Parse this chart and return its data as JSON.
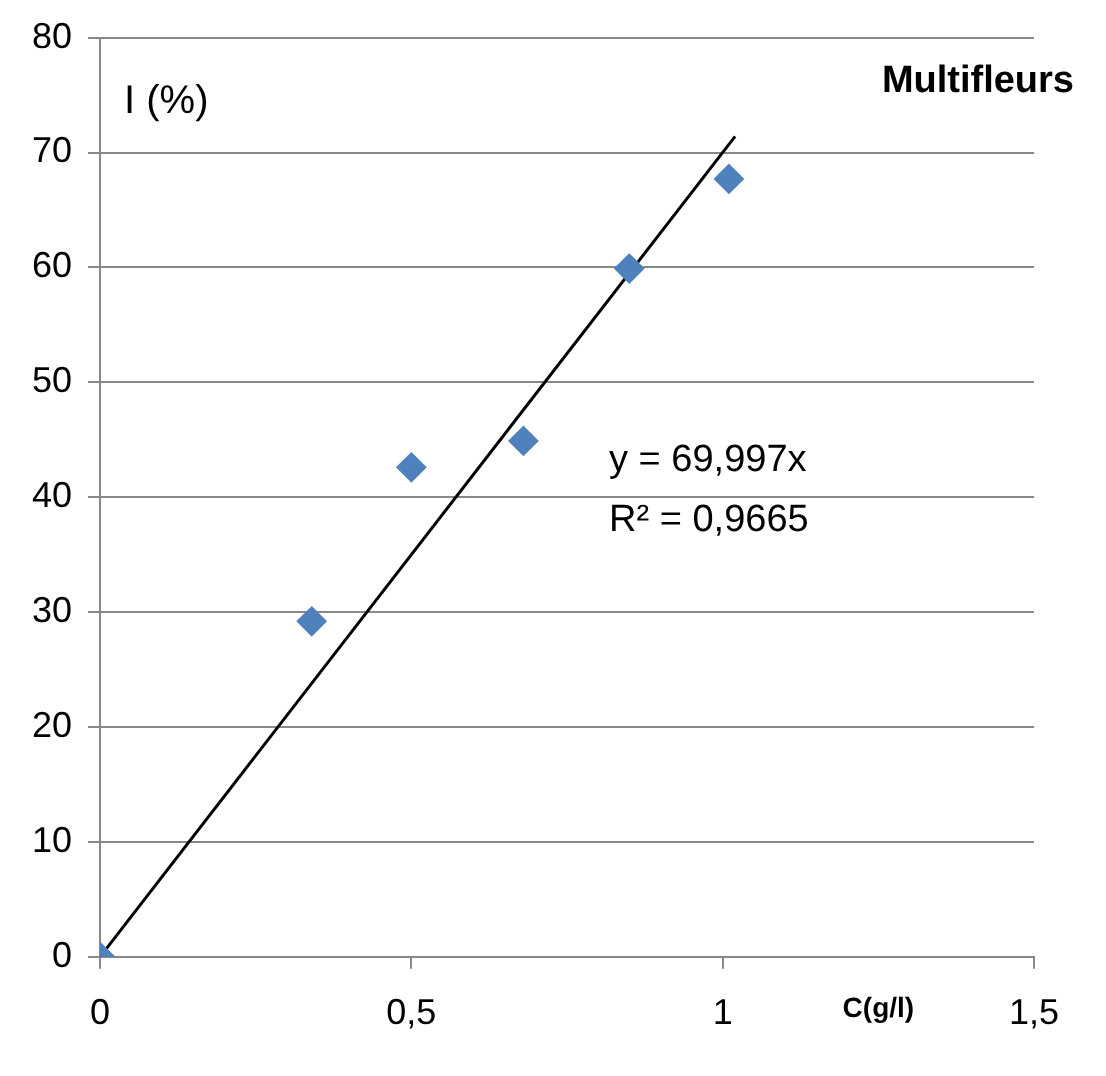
{
  "chart_data": {
    "type": "scatter",
    "title": "Multifleurs",
    "xlabel": "C(g/l)",
    "ylabel": "I (%)",
    "series": [
      {
        "color": "#4f81bd",
        "marker": "diamond",
        "x": [
          0,
          0.34,
          0.5,
          0.68,
          0.85,
          1.01
        ],
        "values": [
          0,
          29.2,
          42.6,
          44.9,
          59.9,
          67.7
        ]
      },
      {
        "type": "line",
        "color": "#000000",
        "marker": "none",
        "line_style": "solid",
        "x": [
          0,
          1.02
        ],
        "values": [
          0,
          71.4
        ]
      }
    ],
    "xlim": [
      0,
      1.5
    ],
    "xticks": [
      0,
      {
        "value": 0.5,
        "label": "0,5"
      },
      1,
      {
        "value": 1.5,
        "label": "1,5"
      }
    ],
    "ylim": [
      0,
      80
    ],
    "yticks": [
      0,
      10,
      20,
      30,
      40,
      50,
      60,
      70,
      80
    ],
    "grid": "y",
    "legend": false,
    "annotations": [
      "y = 69,997x",
      "R² = 0,9665"
    ]
  }
}
